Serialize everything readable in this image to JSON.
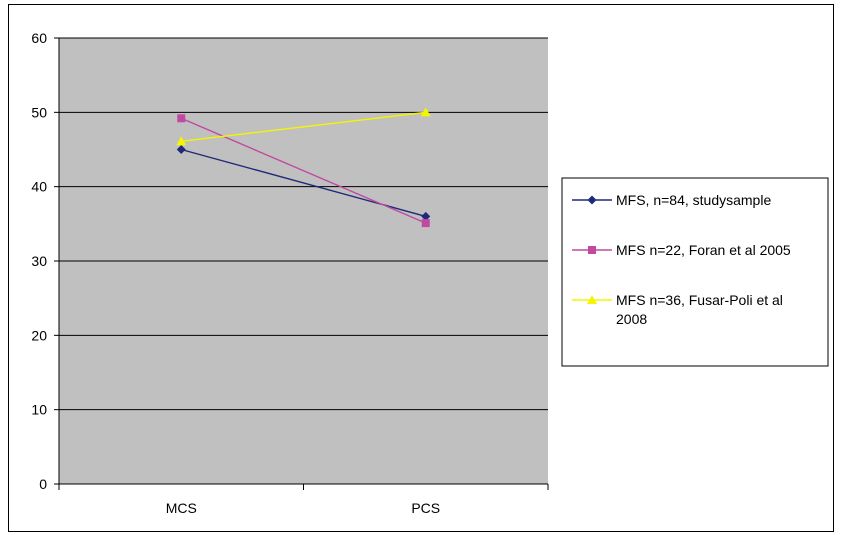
{
  "chart_data": {
    "type": "line",
    "categories": [
      "MCS",
      "PCS"
    ],
    "series": [
      {
        "name": "MFS, n=84, studysample",
        "values": [
          45,
          36
        ],
        "color": "#1f2a7a",
        "marker": "diamond"
      },
      {
        "name": "MFS n=22, Foran et al 2005",
        "values": [
          49.2,
          35.1
        ],
        "color": "#c04aa0",
        "marker": "square"
      },
      {
        "name": "MFS n=36, Fusar-Poli et al 2008",
        "legend_lines": [
          "MFS n=36, Fusar-Poli et al",
          "2008"
        ],
        "values": [
          46.1,
          50
        ],
        "color": "#f5f500",
        "marker": "triangle"
      }
    ],
    "ylim": [
      0,
      60
    ],
    "yticks": [
      0,
      10,
      20,
      30,
      40,
      50,
      60
    ],
    "grid": true,
    "plot_background": "#c0c0c0",
    "legend_position": "right"
  }
}
